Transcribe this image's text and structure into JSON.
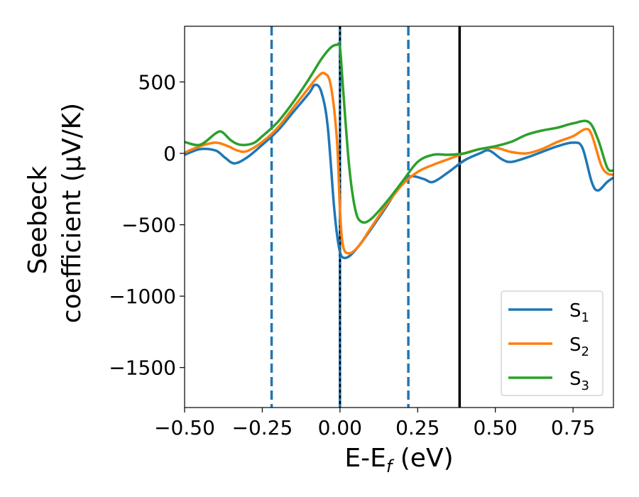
{
  "chart_data": {
    "type": "line",
    "xlabel": "E-E",
    "xlabel_sub": "f",
    "xlabel_unit": " (eV)",
    "ylabel_line1": "Seebeck",
    "ylabel_line2": "coefficient  (μV/K)",
    "xlim": [
      -0.5,
      0.88
    ],
    "ylim": [
      -1780,
      890
    ],
    "xticks": [
      -0.5,
      -0.25,
      0.0,
      0.25,
      0.5,
      0.75
    ],
    "xtick_labels": [
      "−0.50",
      "−0.25",
      "0.00",
      "0.25",
      "0.50",
      "0.75"
    ],
    "yticks": [
      500,
      0,
      -500,
      -1000,
      -1500
    ],
    "ytick_labels": [
      "500",
      "0",
      "−500",
      "−1000",
      "−1500"
    ],
    "grid": false,
    "legend_position": "bottom-right",
    "vlines": [
      {
        "x": -0.22,
        "style": "dashed",
        "color": "#1f77b4"
      },
      {
        "x": 0.0,
        "style": "solid",
        "color": "#1f77b4"
      },
      {
        "x": 0.0,
        "style": "dotted",
        "color": "#000000"
      },
      {
        "x": 0.22,
        "style": "dashed",
        "color": "#1f77b4"
      },
      {
        "x": 0.385,
        "style": "solid",
        "color": "#000000"
      }
    ],
    "series": [
      {
        "name": "S",
        "sub": "1",
        "color": "#1f77b4",
        "points": [
          [
            -0.5,
            -10
          ],
          [
            -0.45,
            30
          ],
          [
            -0.4,
            20
          ],
          [
            -0.37,
            -30
          ],
          [
            -0.34,
            -70
          ],
          [
            -0.3,
            -30
          ],
          [
            -0.25,
            60
          ],
          [
            -0.2,
            160
          ],
          [
            -0.15,
            290
          ],
          [
            -0.1,
            420
          ],
          [
            -0.08,
            480
          ],
          [
            -0.06,
            430
          ],
          [
            -0.04,
            200
          ],
          [
            -0.02,
            -350
          ],
          [
            -0.01,
            -560
          ],
          [
            0.0,
            -690
          ],
          [
            0.01,
            -730
          ],
          [
            0.03,
            -720
          ],
          [
            0.06,
            -650
          ],
          [
            0.1,
            -530
          ],
          [
            0.15,
            -370
          ],
          [
            0.2,
            -200
          ],
          [
            0.23,
            -160
          ],
          [
            0.27,
            -180
          ],
          [
            0.3,
            -200
          ],
          [
            0.35,
            -130
          ],
          [
            0.4,
            -50
          ],
          [
            0.45,
            0
          ],
          [
            0.48,
            20
          ],
          [
            0.52,
            -40
          ],
          [
            0.55,
            -60
          ],
          [
            0.6,
            -30
          ],
          [
            0.65,
            10
          ],
          [
            0.7,
            50
          ],
          [
            0.75,
            75
          ],
          [
            0.78,
            40
          ],
          [
            0.81,
            -200
          ],
          [
            0.83,
            -260
          ],
          [
            0.86,
            -200
          ],
          [
            0.88,
            -170
          ]
        ]
      },
      {
        "name": "S",
        "sub": "2",
        "color": "#ff7f0e",
        "points": [
          [
            -0.5,
            5
          ],
          [
            -0.45,
            50
          ],
          [
            -0.4,
            75
          ],
          [
            -0.36,
            50
          ],
          [
            -0.33,
            20
          ],
          [
            -0.3,
            15
          ],
          [
            -0.25,
            80
          ],
          [
            -0.2,
            180
          ],
          [
            -0.15,
            320
          ],
          [
            -0.1,
            460
          ],
          [
            -0.07,
            540
          ],
          [
            -0.05,
            560
          ],
          [
            -0.03,
            480
          ],
          [
            -0.01,
            100
          ],
          [
            0.0,
            -400
          ],
          [
            0.01,
            -650
          ],
          [
            0.03,
            -700
          ],
          [
            0.06,
            -650
          ],
          [
            0.1,
            -520
          ],
          [
            0.15,
            -360
          ],
          [
            0.2,
            -220
          ],
          [
            0.25,
            -130
          ],
          [
            0.3,
            -80
          ],
          [
            0.35,
            -40
          ],
          [
            0.4,
            0
          ],
          [
            0.45,
            30
          ],
          [
            0.5,
            40
          ],
          [
            0.55,
            10
          ],
          [
            0.6,
            0
          ],
          [
            0.65,
            30
          ],
          [
            0.7,
            80
          ],
          [
            0.75,
            120
          ],
          [
            0.79,
            170
          ],
          [
            0.81,
            130
          ],
          [
            0.84,
            -80
          ],
          [
            0.86,
            -140
          ],
          [
            0.88,
            -150
          ]
        ]
      },
      {
        "name": "S",
        "sub": "3",
        "color": "#2ca02c",
        "points": [
          [
            -0.5,
            80
          ],
          [
            -0.45,
            60
          ],
          [
            -0.4,
            140
          ],
          [
            -0.38,
            150
          ],
          [
            -0.35,
            90
          ],
          [
            -0.32,
            60
          ],
          [
            -0.28,
            70
          ],
          [
            -0.25,
            120
          ],
          [
            -0.2,
            220
          ],
          [
            -0.15,
            360
          ],
          [
            -0.1,
            520
          ],
          [
            -0.06,
            660
          ],
          [
            -0.03,
            740
          ],
          [
            -0.01,
            760
          ],
          [
            0.0,
            740
          ],
          [
            0.01,
            450
          ],
          [
            0.03,
            -100
          ],
          [
            0.05,
            -400
          ],
          [
            0.07,
            -480
          ],
          [
            0.1,
            -460
          ],
          [
            0.15,
            -340
          ],
          [
            0.2,
            -200
          ],
          [
            0.25,
            -60
          ],
          [
            0.3,
            -10
          ],
          [
            0.35,
            -10
          ],
          [
            0.4,
            0
          ],
          [
            0.45,
            30
          ],
          [
            0.5,
            50
          ],
          [
            0.55,
            80
          ],
          [
            0.6,
            130
          ],
          [
            0.65,
            160
          ],
          [
            0.7,
            180
          ],
          [
            0.75,
            210
          ],
          [
            0.8,
            220
          ],
          [
            0.83,
            100
          ],
          [
            0.86,
            -100
          ],
          [
            0.88,
            -120
          ]
        ]
      }
    ]
  }
}
